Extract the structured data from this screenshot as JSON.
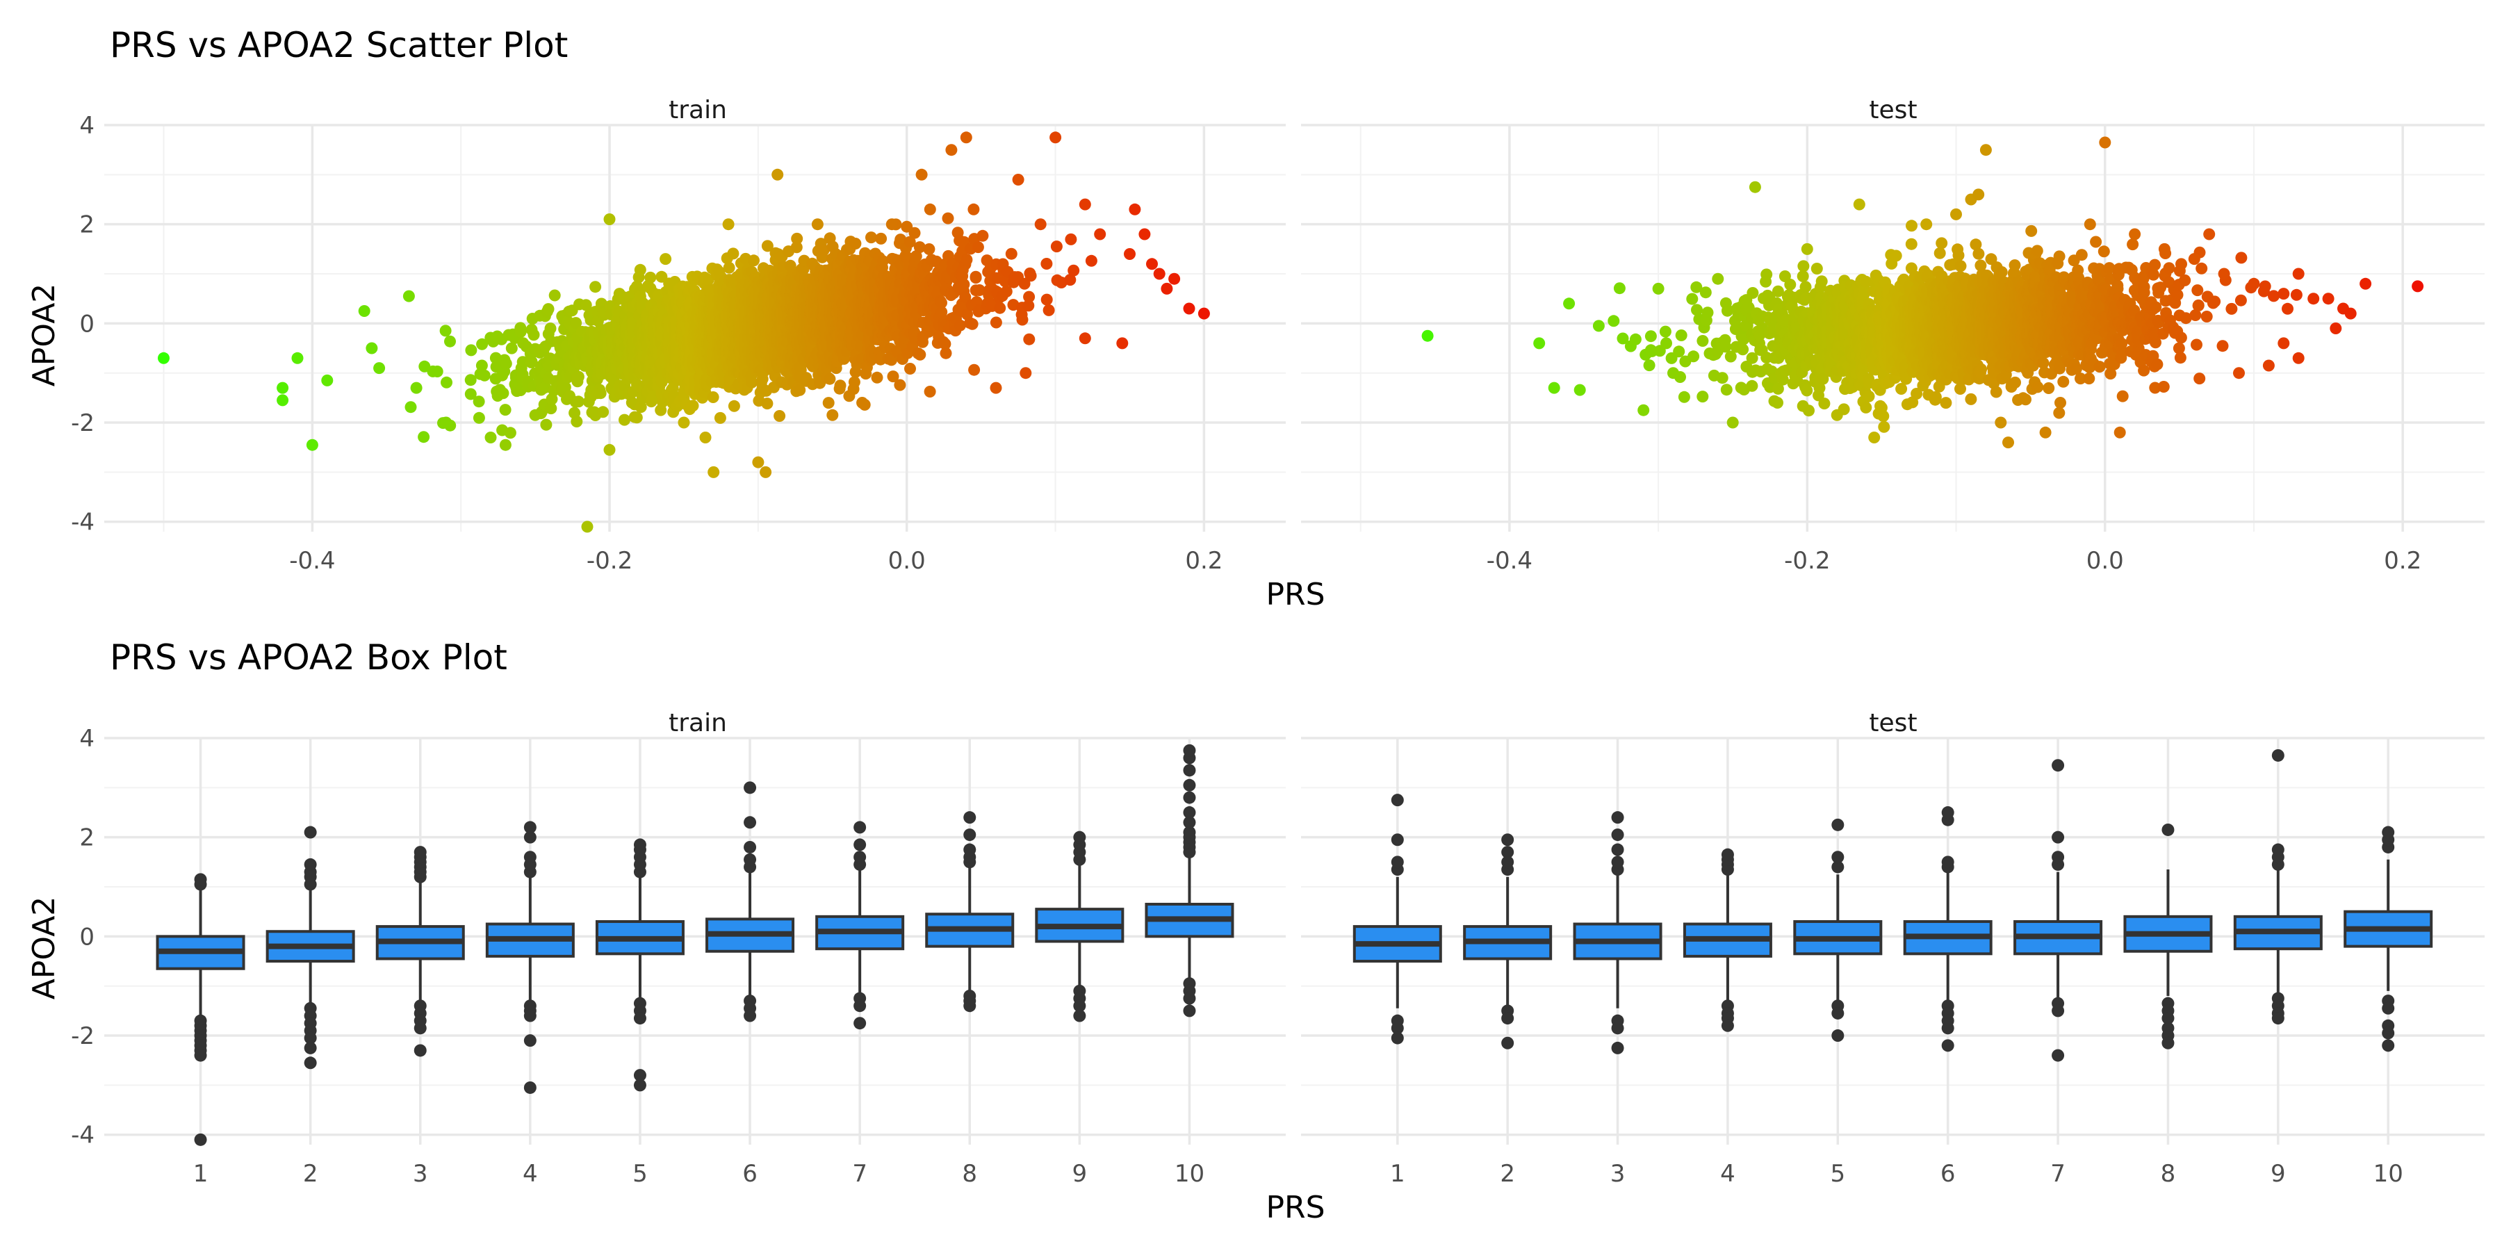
{
  "chart_data": [
    {
      "type": "scatter",
      "title": "PRS vs APOA2 Scatter Plot",
      "xlabel": "PRS",
      "ylabel": "APOA2",
      "xlim": [
        -0.54,
        0.255
      ],
      "ylim": [
        -4.2,
        4.0
      ],
      "x_ticks": [
        -0.4,
        -0.2,
        0.0,
        0.2
      ],
      "x_tick_labels": [
        "-0.4",
        "-0.2",
        "0.0",
        "0.2"
      ],
      "y_ticks": [
        -4,
        -2,
        0,
        2,
        4
      ],
      "y_tick_labels": [
        "-4",
        "-2",
        "0",
        "2",
        "4"
      ],
      "grid": true,
      "color_scale": {
        "low": "#33ff00",
        "mid": "#c8b400",
        "high": "#ee1100",
        "mapped_to": "PRS",
        "range": [
          -0.5,
          0.21
        ]
      },
      "facets": [
        {
          "label": "train",
          "sample_points": [
            [
              -0.5,
              -0.7
            ],
            [
              -0.42,
              -1.3
            ],
            [
              -0.42,
              -1.55
            ],
            [
              -0.4,
              -2.45
            ],
            [
              -0.41,
              -0.7
            ],
            [
              -0.39,
              -1.15
            ],
            [
              -0.365,
              0.25
            ],
            [
              -0.335,
              0.55
            ],
            [
              -0.31,
              -2.0
            ],
            [
              -0.28,
              -2.3
            ],
            [
              -0.27,
              -2.45
            ],
            [
              -0.215,
              -4.1
            ],
            [
              -0.2,
              -2.55
            ],
            [
              -0.2,
              2.1
            ],
            [
              -0.13,
              -3.0
            ],
            [
              -0.12,
              2.0
            ],
            [
              -0.1,
              -2.8
            ],
            [
              -0.095,
              -3.0
            ],
            [
              -0.087,
              3.0
            ],
            [
              -0.06,
              2.0
            ],
            [
              -0.01,
              2.0
            ],
            [
              0.0,
              1.95
            ],
            [
              0.01,
              3.0
            ],
            [
              0.03,
              3.5
            ],
            [
              0.04,
              3.75
            ],
            [
              0.045,
              2.3
            ],
            [
              0.075,
              2.9
            ],
            [
              0.09,
              2.0
            ],
            [
              0.1,
              3.75
            ],
            [
              0.12,
              2.4
            ],
            [
              0.13,
              1.8
            ],
            [
              0.15,
              1.4
            ],
            [
              0.16,
              1.8
            ],
            [
              0.165,
              1.2
            ],
            [
              0.17,
              1.0
            ],
            [
              0.175,
              0.7
            ],
            [
              0.18,
              0.9
            ],
            [
              0.19,
              0.3
            ],
            [
              0.2,
              0.2
            ],
            [
              0.145,
              -0.4
            ],
            [
              0.12,
              -0.3
            ],
            [
              0.08,
              -1.0
            ],
            [
              0.06,
              -1.3
            ],
            [
              -0.03,
              -1.6
            ],
            [
              -0.05,
              -1.85
            ],
            [
              -0.15,
              -2.0
            ],
            [
              -0.25,
              -1.85
            ],
            [
              -0.33,
              -1.3
            ],
            [
              -0.355,
              -0.9
            ],
            [
              -0.36,
              -0.5
            ]
          ]
        },
        {
          "label": "test",
          "sample_points": [
            [
              -0.455,
              -0.25
            ],
            [
              -0.38,
              -0.4
            ],
            [
              -0.37,
              -1.3
            ],
            [
              -0.36,
              0.4
            ],
            [
              -0.34,
              -0.05
            ],
            [
              -0.33,
              0.05
            ],
            [
              -0.31,
              -1.75
            ],
            [
              -0.3,
              0.7
            ],
            [
              -0.29,
              -1.0
            ],
            [
              -0.26,
              0.9
            ],
            [
              -0.25,
              -2.0
            ],
            [
              -0.235,
              2.75
            ],
            [
              -0.22,
              -1.6
            ],
            [
              -0.2,
              1.5
            ],
            [
              -0.18,
              -1.85
            ],
            [
              -0.165,
              2.4
            ],
            [
              -0.155,
              -2.3
            ],
            [
              -0.15,
              -1.7
            ],
            [
              -0.13,
              1.6
            ],
            [
              -0.12,
              2.0
            ],
            [
              -0.1,
              2.2
            ],
            [
              -0.09,
              2.5
            ],
            [
              -0.085,
              2.6
            ],
            [
              -0.08,
              3.5
            ],
            [
              -0.07,
              -2.0
            ],
            [
              -0.065,
              -2.4
            ],
            [
              -0.04,
              -2.2
            ],
            [
              -0.03,
              -1.6
            ],
            [
              -0.01,
              2.0
            ],
            [
              0.0,
              3.65
            ],
            [
              0.01,
              -2.2
            ],
            [
              0.02,
              1.8
            ],
            [
              0.04,
              1.5
            ],
            [
              0.06,
              1.3
            ],
            [
              0.07,
              1.8
            ],
            [
              0.08,
              1.0
            ],
            [
              0.09,
              -1.0
            ],
            [
              0.1,
              0.8
            ],
            [
              0.11,
              -0.85
            ],
            [
              0.12,
              0.6
            ],
            [
              0.13,
              -0.7
            ],
            [
              0.14,
              0.5
            ],
            [
              0.15,
              0.5
            ],
            [
              0.16,
              0.3
            ],
            [
              0.165,
              0.2
            ],
            [
              0.175,
              0.8
            ],
            [
              0.21,
              0.75
            ],
            [
              0.13,
              1.0
            ],
            [
              0.155,
              -0.1
            ],
            [
              0.12,
              -0.4
            ]
          ]
        }
      ]
    },
    {
      "type": "box",
      "title": "PRS vs APOA2 Box Plot",
      "xlabel": "PRS",
      "ylabel": "APOA2",
      "ylim": [
        -4.2,
        4.0
      ],
      "categories": [
        "1",
        "2",
        "3",
        "4",
        "5",
        "6",
        "7",
        "8",
        "9",
        "10"
      ],
      "y_ticks": [
        -4,
        -2,
        0,
        2,
        4
      ],
      "y_tick_labels": [
        "-4",
        "-2",
        "0",
        "2",
        "4"
      ],
      "grid": true,
      "box_fill": "#2a8ef0",
      "box_stroke": "#333333",
      "facets": [
        {
          "label": "train",
          "boxes": [
            {
              "q1": -0.65,
              "median": -0.3,
              "q3": 0.0,
              "whisker_low": -1.6,
              "whisker_high": 1.0,
              "outliers": [
                1.05,
                1.15,
                -1.7,
                -1.8,
                -1.9,
                -2.0,
                -2.1,
                -2.2,
                -2.3,
                -2.4,
                -4.1
              ]
            },
            {
              "q1": -0.5,
              "median": -0.2,
              "q3": 0.1,
              "whisker_low": -1.35,
              "whisker_high": 0.95,
              "outliers": [
                1.05,
                1.2,
                1.3,
                1.45,
                2.1,
                -1.45,
                -1.6,
                -1.75,
                -1.9,
                -2.05,
                -2.25,
                -2.55
              ]
            },
            {
              "q1": -0.45,
              "median": -0.1,
              "q3": 0.2,
              "whisker_low": -1.3,
              "whisker_high": 1.1,
              "outliers": [
                1.2,
                1.3,
                1.4,
                1.5,
                1.6,
                1.7,
                -1.4,
                -1.55,
                -1.7,
                -1.85,
                -2.3
              ]
            },
            {
              "q1": -0.4,
              "median": -0.05,
              "q3": 0.25,
              "whisker_low": -1.3,
              "whisker_high": 1.2,
              "outliers": [
                1.3,
                1.45,
                1.6,
                2.0,
                2.2,
                -1.4,
                -1.5,
                -1.6,
                -2.1,
                -3.05
              ]
            },
            {
              "q1": -0.35,
              "median": -0.05,
              "q3": 0.3,
              "whisker_low": -1.25,
              "whisker_high": 1.2,
              "outliers": [
                1.3,
                1.45,
                1.6,
                1.75,
                1.85,
                -1.35,
                -1.5,
                -1.65,
                -2.8,
                -3.0
              ]
            },
            {
              "q1": -0.3,
              "median": 0.05,
              "q3": 0.35,
              "whisker_low": -1.2,
              "whisker_high": 1.3,
              "outliers": [
                1.4,
                1.55,
                1.8,
                2.3,
                3.0,
                -1.3,
                -1.45,
                -1.6
              ]
            },
            {
              "q1": -0.25,
              "median": 0.1,
              "q3": 0.4,
              "whisker_low": -1.15,
              "whisker_high": 1.35,
              "outliers": [
                1.45,
                1.6,
                1.85,
                2.2,
                -1.25,
                -1.4,
                -1.75
              ]
            },
            {
              "q1": -0.2,
              "median": 0.15,
              "q3": 0.45,
              "whisker_low": -1.1,
              "whisker_high": 1.4,
              "outliers": [
                1.5,
                1.6,
                1.75,
                2.05,
                2.4,
                -1.2,
                -1.3,
                -1.4
              ]
            },
            {
              "q1": -0.1,
              "median": 0.2,
              "q3": 0.55,
              "whisker_low": -1.0,
              "whisker_high": 1.45,
              "outliers": [
                1.55,
                1.7,
                1.85,
                2.0,
                -1.1,
                -1.25,
                -1.4,
                -1.6
              ]
            },
            {
              "q1": 0.0,
              "median": 0.35,
              "q3": 0.65,
              "whisker_low": -0.85,
              "whisker_high": 1.6,
              "outliers": [
                1.7,
                1.8,
                1.9,
                2.0,
                2.1,
                2.3,
                2.5,
                2.8,
                3.05,
                3.35,
                3.6,
                3.75,
                -0.95,
                -1.1,
                -1.25,
                -1.5
              ]
            }
          ]
        },
        {
          "label": "test",
          "boxes": [
            {
              "q1": -0.5,
              "median": -0.15,
              "q3": 0.2,
              "whisker_low": -1.45,
              "whisker_high": 1.2,
              "outliers": [
                1.35,
                1.5,
                1.95,
                2.75,
                -1.7,
                -1.85,
                -2.05
              ]
            },
            {
              "q1": -0.45,
              "median": -0.1,
              "q3": 0.2,
              "whisker_low": -1.4,
              "whisker_high": 1.2,
              "outliers": [
                1.35,
                1.5,
                1.7,
                1.95,
                -1.5,
                -1.65,
                -2.15
              ]
            },
            {
              "q1": -0.45,
              "median": -0.1,
              "q3": 0.25,
              "whisker_low": -1.45,
              "whisker_high": 1.25,
              "outliers": [
                1.35,
                1.5,
                1.75,
                2.05,
                2.4,
                -1.7,
                -1.85,
                -2.25
              ]
            },
            {
              "q1": -0.4,
              "median": -0.05,
              "q3": 0.25,
              "whisker_low": -1.35,
              "whisker_high": 1.25,
              "outliers": [
                1.35,
                1.45,
                1.55,
                1.65,
                -1.4,
                -1.55,
                -1.65,
                -1.8
              ]
            },
            {
              "q1": -0.35,
              "median": -0.05,
              "q3": 0.3,
              "whisker_low": -1.3,
              "whisker_high": 1.25,
              "outliers": [
                1.4,
                1.6,
                2.25,
                -1.4,
                -1.55,
                -2.0
              ]
            },
            {
              "q1": -0.35,
              "median": 0.0,
              "q3": 0.3,
              "whisker_low": -1.3,
              "whisker_high": 1.3,
              "outliers": [
                1.4,
                1.5,
                2.35,
                2.5,
                -1.4,
                -1.55,
                -1.7,
                -1.85,
                -2.2
              ]
            },
            {
              "q1": -0.35,
              "median": 0.0,
              "q3": 0.3,
              "whisker_low": -1.25,
              "whisker_high": 1.3,
              "outliers": [
                1.45,
                1.6,
                2.0,
                3.45,
                -1.35,
                -1.5,
                -2.4
              ]
            },
            {
              "q1": -0.3,
              "median": 0.05,
              "q3": 0.4,
              "whisker_low": -1.2,
              "whisker_high": 1.35,
              "outliers": [
                2.15,
                -1.35,
                -1.5,
                -1.65,
                -1.85,
                -2.0,
                -2.15
              ]
            },
            {
              "q1": -0.25,
              "median": 0.1,
              "q3": 0.4,
              "whisker_low": -1.2,
              "whisker_high": 1.35,
              "outliers": [
                1.45,
                1.6,
                1.75,
                3.65,
                -1.25,
                -1.4,
                -1.55,
                -1.65
              ]
            },
            {
              "q1": -0.2,
              "median": 0.15,
              "q3": 0.5,
              "whisker_low": -1.1,
              "whisker_high": 1.55,
              "outliers": [
                1.8,
                1.95,
                2.1,
                -1.3,
                -1.45,
                -1.8,
                -1.95,
                -2.2
              ]
            }
          ]
        }
      ]
    }
  ]
}
